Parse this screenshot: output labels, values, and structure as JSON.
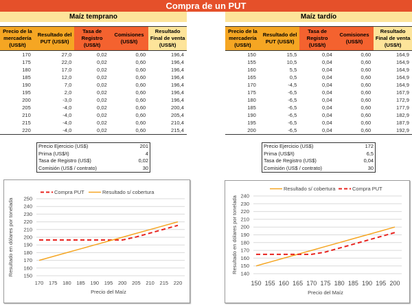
{
  "title": "Compra de un PUT",
  "colors": {
    "banner": "#e5502a",
    "subheader": "#fde49a",
    "header_orange": "#f5a623",
    "header_red": "#f4622f",
    "put_line": "#e8231e",
    "no_hedge_line": "#f5a623"
  },
  "left": {
    "subtitle": "Maíz temprano",
    "headers": [
      "Precio de la mercadería (US$/t)",
      "Resultado del PUT (US$/t)",
      "Tasa de Registro (US$/t)",
      "Comisiones (US$/t)",
      "Resultado Final de venta (US$/t)"
    ],
    "rows": [
      [
        "170",
        "27,0",
        "0,02",
        "0,60",
        "196,4"
      ],
      [
        "175",
        "22,0",
        "0,02",
        "0,60",
        "196,4"
      ],
      [
        "180",
        "17,0",
        "0,02",
        "0,60",
        "196,4"
      ],
      [
        "185",
        "12,0",
        "0,02",
        "0,60",
        "196,4"
      ],
      [
        "190",
        "7,0",
        "0,02",
        "0,60",
        "196,4"
      ],
      [
        "195",
        "2,0",
        "0,02",
        "0,60",
        "196,4"
      ],
      [
        "200",
        "-3,0",
        "0,02",
        "0,60",
        "196,4"
      ],
      [
        "205",
        "-4,0",
        "0,02",
        "0,60",
        "200,4"
      ],
      [
        "210",
        "-4,0",
        "0,02",
        "0,60",
        "205,4"
      ],
      [
        "215",
        "-4,0",
        "0,02",
        "0,60",
        "210,4"
      ],
      [
        "220",
        "-4,0",
        "0,02",
        "0,60",
        "215,4"
      ]
    ],
    "params": [
      {
        "label": "Precio Ejercicio (US$)",
        "value": "201"
      },
      {
        "label": "Prima (US$/t)",
        "value": "4"
      },
      {
        "label": "Tasa de Registro (US$)",
        "value": "0,02"
      },
      {
        "label": "Comisión (US$ / contrato)",
        "value": "30"
      }
    ]
  },
  "right": {
    "subtitle": "Maíz tardío",
    "headers": [
      "Precio de la mercadería (US$/t)",
      "Resultado del PUT (US$/t)",
      "Tasa de Registro (US$/t)",
      "Comisiones (US$/t)",
      "Resultado Final de venta (US$/t)"
    ],
    "rows": [
      [
        "150",
        "15,5",
        "0,04",
        "0,60",
        "164,9"
      ],
      [
        "155",
        "10,5",
        "0,04",
        "0,60",
        "164,9"
      ],
      [
        "160",
        "5,5",
        "0,04",
        "0,60",
        "164,9"
      ],
      [
        "165",
        "0,5",
        "0,04",
        "0,60",
        "164,9"
      ],
      [
        "170",
        "-4,5",
        "0,04",
        "0,60",
        "164,9"
      ],
      [
        "175",
        "-6,5",
        "0,04",
        "0,60",
        "167,9"
      ],
      [
        "180",
        "-6,5",
        "0,04",
        "0,60",
        "172,9"
      ],
      [
        "185",
        "-6,5",
        "0,04",
        "0,60",
        "177,9"
      ],
      [
        "190",
        "-6,5",
        "0,04",
        "0,60",
        "182,9"
      ],
      [
        "195",
        "-6,5",
        "0,04",
        "0,60",
        "187,9"
      ],
      [
        "200",
        "-6,5",
        "0,04",
        "0,60",
        "192,9"
      ]
    ],
    "params": [
      {
        "label": "Precio Ejercicio (US$)",
        "value": "172"
      },
      {
        "label": "Prima (US$/t)",
        "value": "6,5"
      },
      {
        "label": "Tasa de Registro (US$)",
        "value": "0,04"
      },
      {
        "label": "Comisión (US$ / contrato)",
        "value": "30"
      }
    ]
  },
  "chart_data": [
    {
      "type": "line",
      "title": "",
      "xlabel": "Precio del Maíz",
      "ylabel": "Resultado en dólares por tonelada",
      "x": [
        170,
        175,
        180,
        185,
        190,
        195,
        200,
        205,
        210,
        215,
        220
      ],
      "ylim": [
        150,
        250
      ],
      "yticks": [
        150,
        160,
        170,
        180,
        190,
        200,
        210,
        220,
        230,
        240,
        250
      ],
      "grid": true,
      "legend": "top",
      "legend_order": [
        "Compra PUT",
        "Resultado s/ cobertura"
      ],
      "series": [
        {
          "name": "Compra PUT",
          "style": "dashed",
          "values": [
            196.4,
            196.4,
            196.4,
            196.4,
            196.4,
            196.4,
            196.4,
            200.4,
            205.4,
            210.4,
            215.4
          ]
        },
        {
          "name": "Resultado s/ cobertura",
          "style": "solid",
          "values": [
            170,
            175,
            180,
            185,
            190,
            195,
            200,
            205,
            210,
            215,
            220
          ]
        }
      ]
    },
    {
      "type": "line",
      "title": "",
      "xlabel": "Precio del Maíz",
      "ylabel": "Resultado en dólares por tonelada",
      "x": [
        150,
        155,
        160,
        165,
        170,
        175,
        180,
        185,
        190,
        195,
        200
      ],
      "ylim": [
        140,
        240
      ],
      "yticks": [
        140,
        150,
        160,
        170,
        180,
        190,
        200,
        210,
        220,
        230,
        240
      ],
      "grid": true,
      "legend": "top",
      "legend_order": [
        "Resultado s/ cobertura",
        "Compra PUT"
      ],
      "series": [
        {
          "name": "Resultado s/ cobertura",
          "style": "solid",
          "values": [
            150,
            155,
            160,
            165,
            170,
            175,
            180,
            185,
            190,
            195,
            200
          ]
        },
        {
          "name": "Compra PUT",
          "style": "dashed",
          "values": [
            164.9,
            164.9,
            164.9,
            164.9,
            164.9,
            167.9,
            172.9,
            177.9,
            182.9,
            187.9,
            192.9
          ]
        }
      ]
    }
  ]
}
